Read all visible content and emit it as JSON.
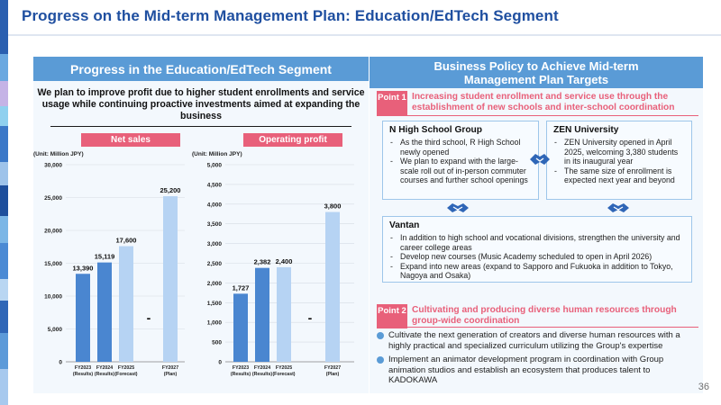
{
  "slide": {
    "title": "Progress on the Mid-term Management Plan: Education/EdTech Segment",
    "page_number": "36"
  },
  "left": {
    "header": "Progress in the Education/EdTech Segment",
    "lead": "We plan to improve profit due to higher student enrollments and service usage while continuing proactive investments aimed at expanding the business"
  },
  "right": {
    "header": "Business Policy to Achieve Mid-term Management Plan Targets",
    "point1": {
      "badge": "Point 1",
      "text": "Increasing student enrollment and service use through the establishment of new schools and inter-school coordination"
    },
    "n_high": {
      "title": "N High School Group",
      "items": [
        "As the third school, R High School newly opened",
        "We plan to expand with the large-scale roll out of in-person commuter courses and further school openings"
      ]
    },
    "zen": {
      "title": "ZEN University",
      "items": [
        "ZEN University opened in April 2025, welcoming 3,380 students in its inaugural year",
        "The same size of enrollment is expected next year and beyond"
      ]
    },
    "vantan": {
      "title": "Vantan",
      "items": [
        "In addition to high school and vocational divisions, strengthen the university and career college areas",
        "Develop new courses (Music Academy scheduled to open in April 2026)",
        "Expand into new areas (expand to Sapporo and Fukuoka in addition to Tokyo, Nagoya and Osaka)"
      ]
    },
    "point2": {
      "badge": "Point 2",
      "text": "Cultivating and producing diverse human resources through group-wide coordination",
      "bullets": [
        "Cultivate the next generation of creators and diverse human resources with a highly practical and specialized curriculum utilizing the Group's expertise",
        "Implement an animator development program in coordination with Group animation studios and establish an ecosystem that produces talent to KADOKAWA"
      ]
    }
  },
  "colors": {
    "title_blue": "#1f4fa0",
    "header_blue": "#5a9bd6",
    "bar_dark": "#4a86d0",
    "bar_light": "#b6d3f3",
    "accent_pink": "#e8607a",
    "panel_bg": "#f3f8fd"
  },
  "icons": [
    "handshake-icon"
  ],
  "chart_data": [
    {
      "type": "bar",
      "title": "Net sales",
      "unit": "(Unit: Million JPY)",
      "categories": [
        "FY2023",
        "FY2024",
        "FY2025",
        "FY2027"
      ],
      "category_sublabels": [
        "(Results)",
        "(Results)",
        "(Forecast)",
        "(Plan)"
      ],
      "values": [
        13390,
        15119,
        17600,
        25200
      ],
      "value_labels": [
        "13,390",
        "15,119",
        "17,600",
        "25,200"
      ],
      "kinds": [
        "result",
        "result",
        "projection",
        "projection"
      ],
      "ylim": [
        0,
        30000
      ],
      "yticks": [
        0,
        5000,
        10000,
        15000,
        20000,
        25000,
        30000
      ],
      "ytick_labels": [
        "0",
        "5,000",
        "10,000",
        "15,000",
        "20,000",
        "25,000",
        "30,000"
      ],
      "gap_marker": "-",
      "grid": true
    },
    {
      "type": "bar",
      "title": "Operating profit",
      "unit": "(Unit: Million JPY)",
      "categories": [
        "FY2023",
        "FY2024",
        "FY2025",
        "FY2027"
      ],
      "category_sublabels": [
        "(Results)",
        "(Results)",
        "(Forecast)",
        "(Plan)"
      ],
      "values": [
        1727,
        2382,
        2400,
        3800
      ],
      "value_labels": [
        "1,727",
        "2,382",
        "2,400",
        "3,800"
      ],
      "kinds": [
        "result",
        "result",
        "projection",
        "projection"
      ],
      "ylim": [
        0,
        5000
      ],
      "yticks": [
        0,
        500,
        1000,
        1500,
        2000,
        2500,
        3000,
        3500,
        4000,
        4500,
        5000
      ],
      "ytick_labels": [
        "0",
        "500",
        "1,000",
        "1,500",
        "2,000",
        "2,500",
        "3,000",
        "3,500",
        "4,000",
        "4,500",
        "5,000"
      ],
      "gap_marker": "-",
      "grid": true
    }
  ]
}
